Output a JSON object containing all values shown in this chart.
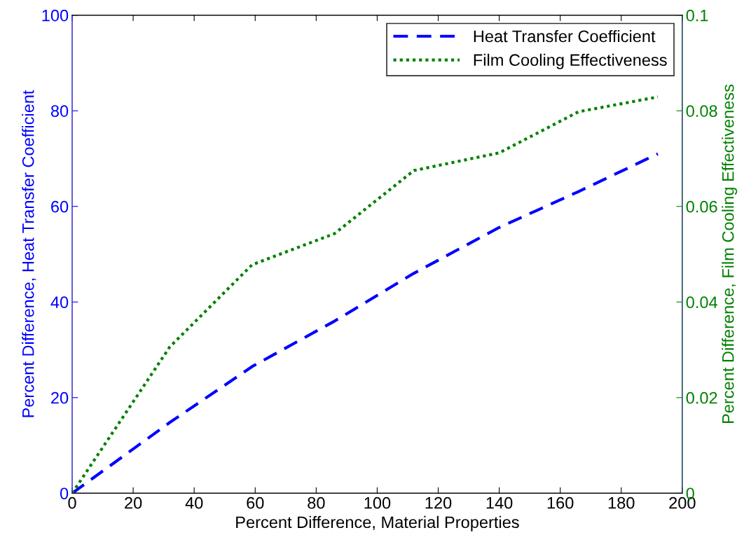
{
  "chart_data": {
    "type": "line",
    "xlabel": "Percent Difference, Material Properties",
    "ylabel": "Percent Difference, Heat Transfer Coefficient",
    "y2label": "Percent Difference, Film Cooling Effectiveness",
    "x": [
      0,
      32,
      59,
      86,
      112,
      140,
      166,
      192
    ],
    "series": [
      {
        "name": "Heat Transfer Coefficient",
        "color": "#0000ff",
        "line_style": "dashed",
        "values": [
          0,
          14.8,
          26.5,
          36.0,
          46.0,
          55.6,
          63.1,
          71.0
        ]
      },
      {
        "name": "Film Cooling Effectiveness",
        "color": "#008000",
        "line_style": "dotted",
        "axis": "y2",
        "values": [
          0,
          0.0306,
          0.0478,
          0.0543,
          0.0675,
          0.0712,
          0.0798,
          0.0829
        ]
      }
    ],
    "xlim": [
      0,
      200
    ],
    "xticks": [
      0,
      20,
      40,
      60,
      80,
      100,
      120,
      140,
      160,
      180,
      200
    ],
    "ylim": [
      0,
      100
    ],
    "yticks": [
      0,
      20,
      40,
      60,
      80,
      100
    ],
    "y2lim": [
      0,
      0.1
    ],
    "y2ticks": [
      0,
      0.02,
      0.04,
      0.06,
      0.08,
      0.1
    ],
    "grid": false,
    "legend": "top right"
  }
}
